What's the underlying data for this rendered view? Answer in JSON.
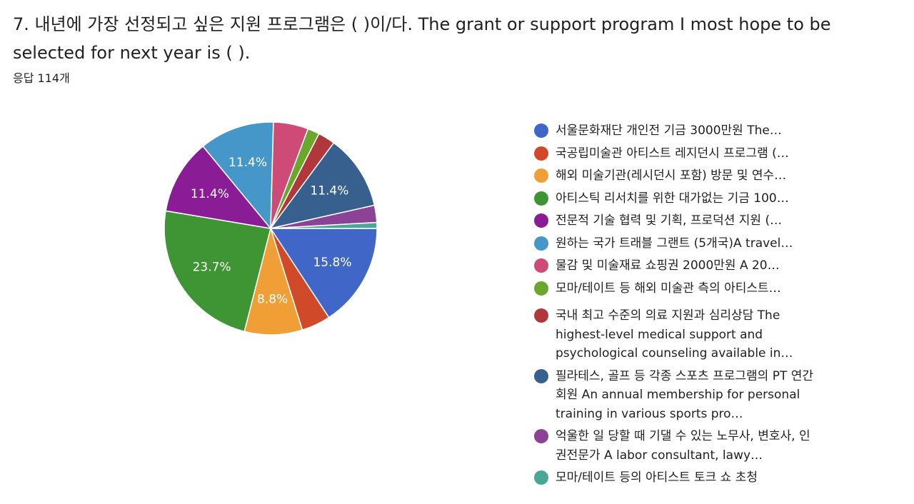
{
  "header": {
    "question": "7. 내년에 가장 선정되고 싶은 지원 프로그램은  (       )이/다. The grant or support program I most hope to be selected for next year is ( ).",
    "response_count": "응답 114개"
  },
  "chart_data": {
    "type": "pie",
    "total": 114,
    "slices": [
      {
        "label": "서울문화재단 개인전 기금 3000만원 The…",
        "value": 15.8,
        "display": "15.8%",
        "color": "#4066c8"
      },
      {
        "label": "국공립미술관 아티스트 레지던시 프로그램 (…",
        "value": 4.4,
        "display": "",
        "color": "#d04a2a"
      },
      {
        "label": "해외 미술기관(레시던시 포함) 방문 및 연수…",
        "value": 8.8,
        "display": "8.8%",
        "color": "#f09f36"
      },
      {
        "label": "아티스틱 리서치를 위한 대가없는 기금 100…",
        "value": 23.7,
        "display": "23.7%",
        "color": "#3f9534"
      },
      {
        "label": "전문적 기술 협력 및 기획, 프로덕션 지원 (…",
        "value": 11.4,
        "display": "11.4%",
        "color": "#8a1d96"
      },
      {
        "label": "원하는 국가 트래블 그랜트 (5개국)A travel…",
        "value": 11.4,
        "display": "11.4%",
        "color": "#4497c8"
      },
      {
        "label": "물감 및 미술재료 쇼핑권 2000만원 A 20…",
        "value": 5.3,
        "display": "",
        "color": "#cd4b76"
      },
      {
        "label": "모마/테이트 등 해외 미술관 측의 아티스트…",
        "value": 1.8,
        "display": "",
        "color": "#6aa72a"
      },
      {
        "label": "국내 최고 수준의 의료 지원과 심리상담 The highest-level medical support and psychological counseling available in…",
        "value": 2.6,
        "display": "",
        "color": "#b0383a"
      },
      {
        "label": "필라테스, 골프 등 각종 스포츠 프로그램의 PT 연간회원 An annual membership for personal training in various sports pro…",
        "value": 11.4,
        "display": "11.4%",
        "color": "#37608f"
      },
      {
        "label": "억울한 일 당할 때 기댈 수 있는 노무사, 변호사, 인권전문가 A labor consultant, lawy…",
        "value": 2.6,
        "display": "",
        "color": "#8c4295"
      },
      {
        "label": "모마/테이트 등의 아티스트 토크 쇼 초청",
        "value": 0.9,
        "display": "",
        "color": "#4aa698"
      }
    ],
    "start_angle_deg": 90,
    "direction": "clockwise",
    "legend_position": "right"
  }
}
